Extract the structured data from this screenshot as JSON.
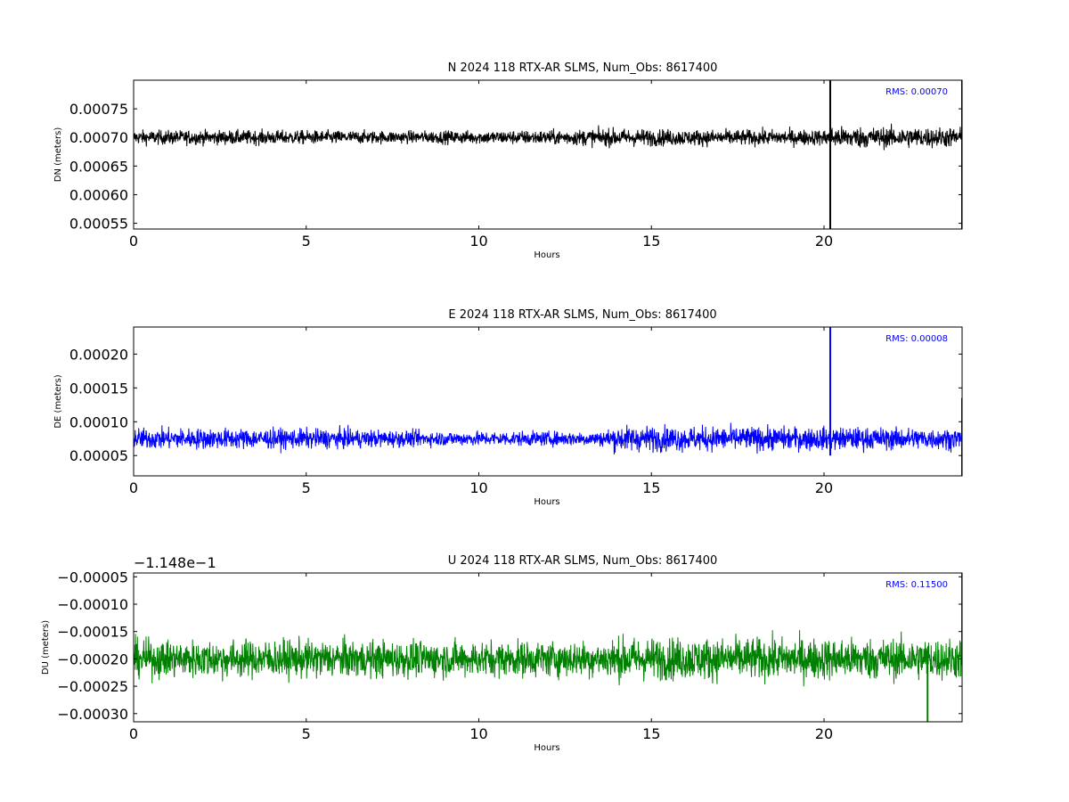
{
  "chart_data": [
    {
      "type": "line",
      "title": "N 2024 118 RTX-AR  SLMS, Num_Obs: 8617400",
      "xlabel": "Hours",
      "ylabel": "DN (meters)",
      "xlim": [
        0,
        24
      ],
      "ylim": [
        0.00054,
        0.0008
      ],
      "xticks": [
        0,
        5,
        10,
        15,
        20
      ],
      "xticklabels": [
        "0",
        "5",
        "10",
        "15",
        "20"
      ],
      "yticks": [
        0.00055,
        0.0006,
        0.00065,
        0.0007,
        0.00075
      ],
      "yticklabels": [
        "0.00055",
        "0.00060",
        "0.00065",
        "0.00070",
        "0.00075"
      ],
      "offset_label": "",
      "annotation": "RMS:  0.00070",
      "color": "#000000",
      "series": [
        {
          "values_description": "dense noise band",
          "envelope": [
            [
              0,
              0.00068,
              0.00072
            ],
            [
              4,
              0.00068,
              0.00072
            ],
            [
              8,
              0.000683,
              0.000718
            ],
            [
              12,
              0.00068,
              0.00072
            ],
            [
              14,
              0.000675,
              0.000725
            ],
            [
              16,
              0.000677,
              0.000722
            ],
            [
              20,
              0.000678,
              0.000722
            ],
            [
              20.2,
              0.00067,
              0.00073
            ],
            [
              24,
              0.000672,
              0.000728
            ]
          ],
          "spikes": [
            [
              20.18,
              0.00054,
              0.0008
            ],
            [
              24.0,
              0.00054,
              0.0008
            ]
          ]
        }
      ]
    },
    {
      "type": "line",
      "title": "E 2024 118 RTX-AR  SLMS, Num_Obs: 8617400",
      "xlabel": "Hours",
      "ylabel": "DE (meters)",
      "xlim": [
        0,
        24
      ],
      "ylim": [
        2e-05,
        0.00024
      ],
      "xticks": [
        0,
        5,
        10,
        15,
        20
      ],
      "xticklabels": [
        "0",
        "5",
        "10",
        "15",
        "20"
      ],
      "yticks": [
        5e-05,
        0.0001,
        0.00015,
        0.0002
      ],
      "yticklabels": [
        "0.00005",
        "0.00010",
        "0.00015",
        "0.00020"
      ],
      "offset_label": "",
      "annotation": "RMS:  0.00008",
      "color": "#0000ff",
      "series": [
        {
          "values_description": "dense noise band",
          "envelope": [
            [
              0,
              5e-05,
              0.0001
            ],
            [
              6,
              5.2e-05,
              9.8e-05
            ],
            [
              9,
              5.8e-05,
              9.2e-05
            ],
            [
              13.5,
              5.8e-05,
              9.2e-05
            ],
            [
              14,
              4.5e-05,
              0.000105
            ],
            [
              18,
              4.7e-05,
              0.000103
            ],
            [
              24,
              5e-05,
              0.0001
            ]
          ],
          "spikes": [
            [
              20.18,
              5e-05,
              0.00024
            ],
            [
              24.0,
              2e-05,
              0.000135
            ]
          ]
        }
      ]
    },
    {
      "type": "line",
      "title": "U 2024 118 RTX-AR  SLMS, Num_Obs: 8617400",
      "xlabel": "Hours",
      "ylabel": "DU (meters)",
      "xlim": [
        0,
        24
      ],
      "ylim": [
        -0.000315,
        -4.3e-05
      ],
      "xticks": [
        0,
        5,
        10,
        15,
        20
      ],
      "xticklabels": [
        "0",
        "5",
        "10",
        "15",
        "20"
      ],
      "yticks": [
        -0.0003,
        -0.00025,
        -0.0002,
        -0.00015,
        -0.0001,
        -5e-05
      ],
      "yticklabels": [
        "−0.00030",
        "−0.00025",
        "−0.00020",
        "−0.00015",
        "−0.00010",
        "−0.00005"
      ],
      "offset_label": "−1.148e−1",
      "annotation": "RMS:  0.11500",
      "color": "#008000",
      "series": [
        {
          "values_description": "dense noise band",
          "envelope": [
            [
              0,
              -0.000255,
              -0.000145
            ],
            [
              6,
              -0.000255,
              -0.000145
            ],
            [
              9,
              -0.000252,
              -0.000148
            ],
            [
              13.5,
              -0.000252,
              -0.000148
            ],
            [
              14,
              -0.000262,
              -0.000138
            ],
            [
              24,
              -0.00026,
              -0.00014
            ]
          ],
          "spikes": [
            [
              23.0,
              -0.000315,
              -0.0002
            ],
            [
              24.0,
              -0.0002,
              -4.3e-05
            ]
          ]
        }
      ]
    }
  ]
}
